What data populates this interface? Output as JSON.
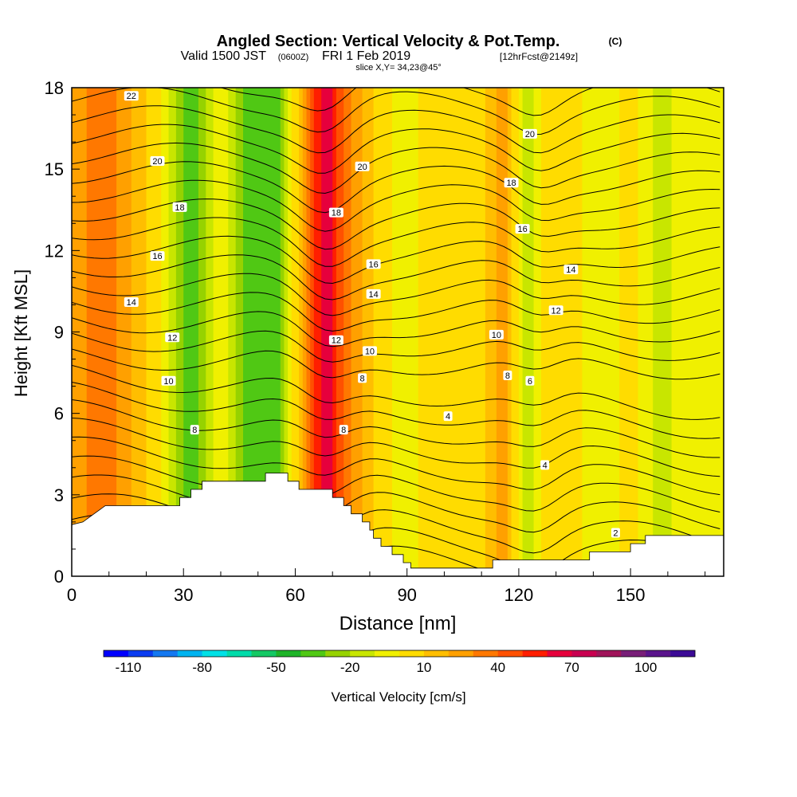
{
  "header": {
    "title": "Angled Section: Vertical Velocity & Pot.Temp.",
    "title_unit": "(C)",
    "valid_prefix": "Valid 1500 JST",
    "valid_utc": "(0600Z)",
    "valid_date": "FRI 1 Feb 2019",
    "forecast": "[12hrFcst@2149z]",
    "slice": "slice X,Y= 34,23@45°"
  },
  "chart_data": {
    "type": "heatmap",
    "xlabel": "Distance [nm]",
    "ylabel": "Height [Kft MSL]",
    "xlim": [
      0,
      175
    ],
    "ylim": [
      0,
      18
    ],
    "x_ticks": [
      "0",
      "30",
      "60",
      "90",
      "120",
      "150"
    ],
    "y_ticks": [
      "0",
      "3",
      "6",
      "9",
      "12",
      "15",
      "18"
    ],
    "contour_variable": "Potential temperature (C)",
    "contour_labels": [
      {
        "text": "22",
        "x": 16,
        "y": 17.7
      },
      {
        "text": "20",
        "x": 23,
        "y": 15.3
      },
      {
        "text": "18",
        "x": 29,
        "y": 13.6
      },
      {
        "text": "16",
        "x": 23,
        "y": 11.8
      },
      {
        "text": "14",
        "x": 16,
        "y": 10.1
      },
      {
        "text": "12",
        "x": 27,
        "y": 8.8
      },
      {
        "text": "10",
        "x": 26,
        "y": 7.2
      },
      {
        "text": "8",
        "x": 33,
        "y": 5.4
      },
      {
        "text": "20",
        "x": 78,
        "y": 15.1
      },
      {
        "text": "18",
        "x": 71,
        "y": 13.4
      },
      {
        "text": "16",
        "x": 81,
        "y": 11.5
      },
      {
        "text": "14",
        "x": 81,
        "y": 10.4
      },
      {
        "text": "12",
        "x": 71,
        "y": 8.7
      },
      {
        "text": "10",
        "x": 80,
        "y": 8.3
      },
      {
        "text": "8",
        "x": 78,
        "y": 7.3
      },
      {
        "text": "8",
        "x": 73,
        "y": 5.4
      },
      {
        "text": "4",
        "x": 101,
        "y": 5.9
      },
      {
        "text": "20",
        "x": 123,
        "y": 16.3
      },
      {
        "text": "18",
        "x": 118,
        "y": 14.5
      },
      {
        "text": "16",
        "x": 121,
        "y": 12.8
      },
      {
        "text": "14",
        "x": 134,
        "y": 11.3
      },
      {
        "text": "12",
        "x": 130,
        "y": 9.8
      },
      {
        "text": "10",
        "x": 114,
        "y": 8.9
      },
      {
        "text": "8",
        "x": 117,
        "y": 7.4
      },
      {
        "text": "6",
        "x": 123,
        "y": 7.2
      },
      {
        "text": "4",
        "x": 127,
        "y": 4.1
      },
      {
        "text": "2",
        "x": 146,
        "y": 1.6
      }
    ],
    "colorbar": {
      "label": "Vertical Velocity [cm/s]",
      "tick_labels": [
        "-110",
        "-80",
        "-50",
        "-20",
        "10",
        "40",
        "70",
        "100"
      ],
      "min": -120,
      "max": 120,
      "step": 10,
      "colors": [
        "#0000ff",
        "#0a3cf0",
        "#1478f0",
        "#00b4f0",
        "#00e1e6",
        "#00dcaa",
        "#14c864",
        "#1eb428",
        "#50c814",
        "#96d200",
        "#c8e600",
        "#f0f000",
        "#ffdc00",
        "#ffbe00",
        "#ffa000",
        "#ff7800",
        "#ff5000",
        "#ff1e00",
        "#e6003c",
        "#c80050",
        "#a0145a",
        "#781e78",
        "#5a148c",
        "#3c0a96"
      ]
    },
    "terrain_profile": [
      [
        0,
        1.9
      ],
      [
        3,
        2.0
      ],
      [
        6,
        2.3
      ],
      [
        9,
        2.6
      ],
      [
        29,
        2.6
      ],
      [
        29,
        2.9
      ],
      [
        32,
        2.9
      ],
      [
        32,
        3.2
      ],
      [
        35,
        3.2
      ],
      [
        35,
        3.5
      ],
      [
        52,
        3.5
      ],
      [
        52,
        3.8
      ],
      [
        58,
        3.8
      ],
      [
        58,
        3.5
      ],
      [
        61,
        3.5
      ],
      [
        61,
        3.2
      ],
      [
        70,
        3.2
      ],
      [
        70,
        2.9
      ],
      [
        73,
        2.9
      ],
      [
        73,
        2.6
      ],
      [
        75,
        2.6
      ],
      [
        75,
        2.3
      ],
      [
        78,
        2.3
      ],
      [
        78,
        2.0
      ],
      [
        80,
        2.0
      ],
      [
        80,
        1.7
      ],
      [
        81,
        1.7
      ],
      [
        81,
        1.4
      ],
      [
        83,
        1.4
      ],
      [
        83,
        1.1
      ],
      [
        86,
        1.1
      ],
      [
        86,
        0.8
      ],
      [
        89,
        0.8
      ],
      [
        89,
        0.5
      ],
      [
        91,
        0.5
      ],
      [
        91,
        0.3
      ],
      [
        95,
        0.3
      ],
      [
        95,
        0.3
      ],
      [
        113,
        0.3
      ],
      [
        113,
        0.6
      ],
      [
        128,
        0.6
      ],
      [
        128,
        0.6
      ],
      [
        139,
        0.6
      ],
      [
        139,
        0.9
      ],
      [
        150,
        0.9
      ],
      [
        150,
        1.2
      ],
      [
        154,
        1.2
      ],
      [
        154,
        1.5
      ],
      [
        175,
        1.5
      ]
    ],
    "velocity_bands": [
      {
        "x": 0,
        "value": 20
      },
      {
        "x": 8,
        "value": 40
      },
      {
        "x": 18,
        "value": 15
      },
      {
        "x": 24,
        "value": 0
      },
      {
        "x": 32,
        "value": -40
      },
      {
        "x": 40,
        "value": 0
      },
      {
        "x": 48,
        "value": -40
      },
      {
        "x": 56,
        "value": -30
      },
      {
        "x": 63,
        "value": 30
      },
      {
        "x": 68,
        "value": 70
      },
      {
        "x": 74,
        "value": 35
      },
      {
        "x": 82,
        "value": 5
      },
      {
        "x": 90,
        "value": -5
      },
      {
        "x": 100,
        "value": 10
      },
      {
        "x": 110,
        "value": 5
      },
      {
        "x": 116,
        "value": 30
      },
      {
        "x": 122,
        "value": -20
      },
      {
        "x": 128,
        "value": 10
      },
      {
        "x": 134,
        "value": 5
      },
      {
        "x": 142,
        "value": -10
      },
      {
        "x": 150,
        "value": 5
      },
      {
        "x": 158,
        "value": -15
      },
      {
        "x": 166,
        "value": 0
      },
      {
        "x": 175,
        "value": -5
      }
    ]
  }
}
